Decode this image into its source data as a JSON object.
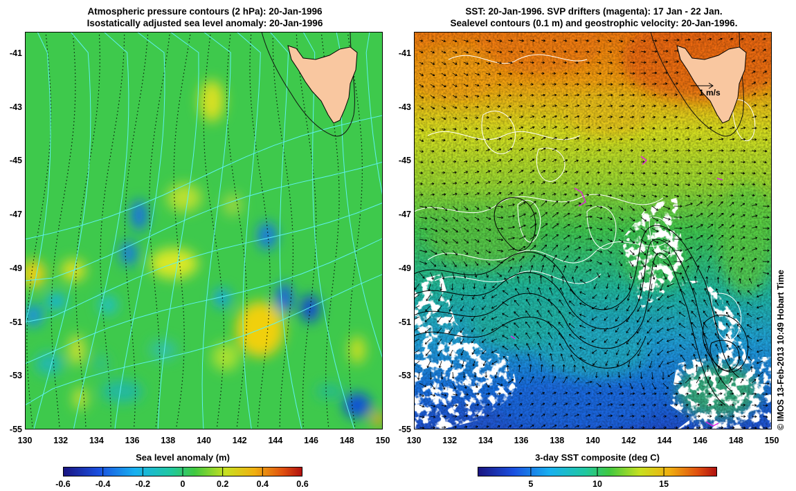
{
  "left_panel": {
    "title_line1": "Atmospheric pressure contours (2 hPa): 20-Jan-1996",
    "title_line2": "Isostatically adjusted sea level anomaly: 20-Jan-1996",
    "colorbar_title": "Sea level anomaly (m)",
    "colorbar_ticks": [
      "-0.6",
      "-0.4",
      "-0.2",
      "0",
      "0.2",
      "0.4",
      "0.6"
    ],
    "colorbar_range": [
      -0.6,
      0.6
    ]
  },
  "right_panel": {
    "title_line1": "SST: 20-Jan-1996. SVP drifters (magenta): 17 Jan - 22 Jan.",
    "title_line2": "Sealevel contours (0.1 m) and geostrophic velocity: 20-Jan-1996.",
    "colorbar_title": "3-day SST composite (deg C)",
    "colorbar_ticks": [
      "5",
      "10",
      "15"
    ],
    "colorbar_range": [
      1,
      19
    ],
    "velocity_scale_label": "1 m/s"
  },
  "axes": {
    "lon_ticks": [
      "130",
      "132",
      "134",
      "136",
      "138",
      "140",
      "142",
      "144",
      "146",
      "148",
      "150"
    ],
    "lat_ticks": [
      "-41",
      "-43",
      "-45",
      "-47",
      "-49",
      "-51",
      "-53",
      "-55"
    ],
    "lon_range": [
      130,
      150
    ],
    "lat_range": [
      -55,
      -40.2
    ]
  },
  "credit": "© IMOS 13-Feb-2013 10:49 Hobart Time",
  "colors": {
    "land": "#f9c7a0",
    "pressure_contour": "#5ff0ef",
    "sealevel_contour": "#ffffff",
    "drifter": "#e020e0",
    "ssh_background": "#3cc84a",
    "sst_warm": "#f07a10",
    "sst_cool": "#1060e0"
  }
}
